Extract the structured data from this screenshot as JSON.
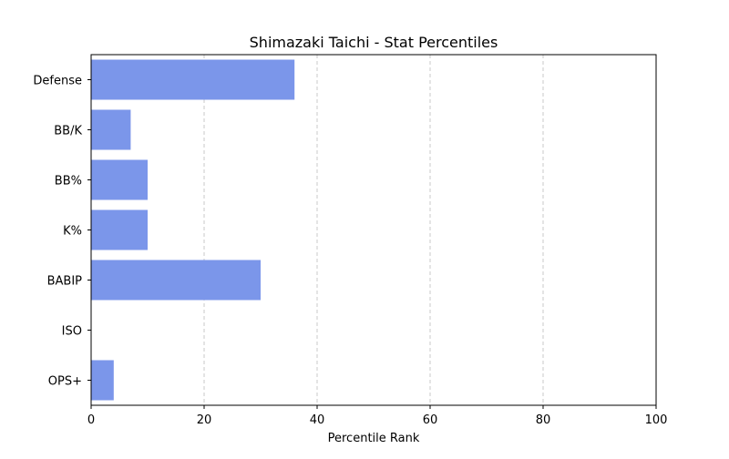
{
  "chart_data": {
    "type": "bar",
    "orientation": "horizontal",
    "title": "Shimazaki Taichi - Stat Percentiles",
    "xlabel": "Percentile Rank",
    "ylabel": "",
    "categories": [
      "Defense",
      "BB/K",
      "BB%",
      "K%",
      "BABIP",
      "ISO",
      "OPS+"
    ],
    "values": [
      36,
      7,
      10,
      10,
      30,
      0,
      4
    ],
    "xlim": [
      0,
      100
    ],
    "xticks": [
      0,
      20,
      40,
      60,
      80,
      100
    ],
    "grid": "x-axis dashed",
    "bar_color": "#7b96ea"
  }
}
